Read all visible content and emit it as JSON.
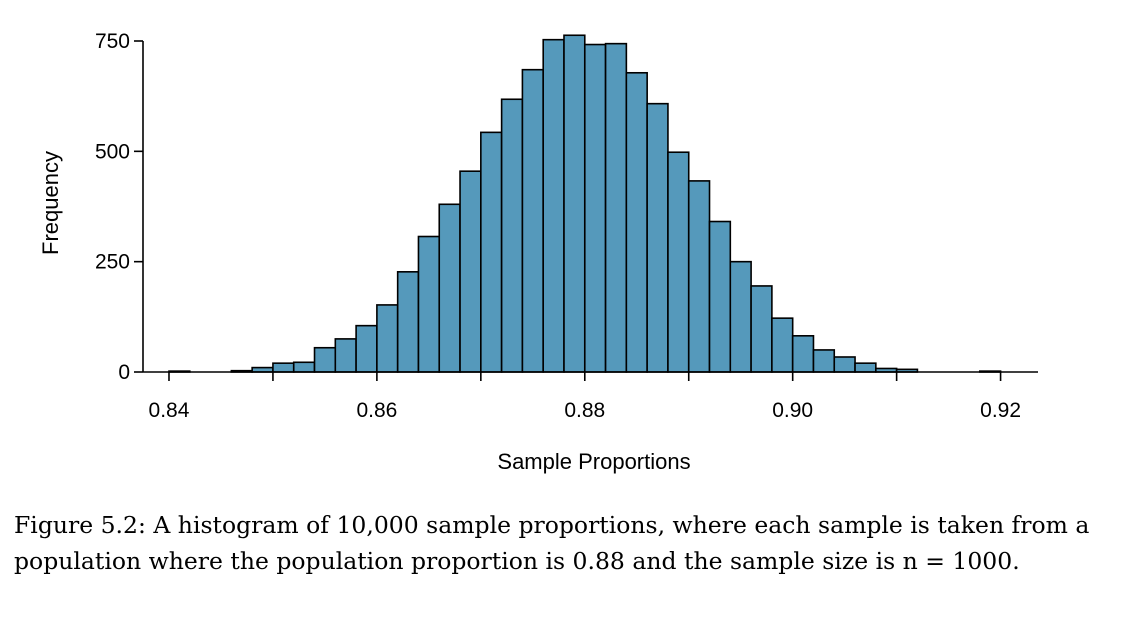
{
  "chart_data": {
    "type": "bar",
    "title": "",
    "xlabel": "Sample Proportions",
    "ylabel": "Frequency",
    "xlim": [
      0.8375,
      0.9236
    ],
    "ylim": [
      0,
      750
    ],
    "bin_width": 0.002,
    "x_ticks": [
      0.84,
      0.85,
      0.86,
      0.87,
      0.88,
      0.89,
      0.9,
      0.91,
      0.92
    ],
    "x_tick_labels": [
      "0.84",
      "",
      "0.86",
      "",
      "0.88",
      "",
      "0.90",
      "",
      "0.92"
    ],
    "y_ticks": [
      0,
      250,
      500,
      750
    ],
    "y_tick_labels": [
      "0",
      "250",
      "500",
      "750"
    ],
    "bar_color": "#5599bb",
    "bins": [
      {
        "start": 0.84,
        "count": 2
      },
      {
        "start": 0.846,
        "count": 3
      },
      {
        "start": 0.848,
        "count": 10
      },
      {
        "start": 0.85,
        "count": 20
      },
      {
        "start": 0.852,
        "count": 22
      },
      {
        "start": 0.854,
        "count": 55
      },
      {
        "start": 0.856,
        "count": 75
      },
      {
        "start": 0.858,
        "count": 105
      },
      {
        "start": 0.86,
        "count": 152
      },
      {
        "start": 0.862,
        "count": 227
      },
      {
        "start": 0.864,
        "count": 307
      },
      {
        "start": 0.866,
        "count": 380
      },
      {
        "start": 0.868,
        "count": 455
      },
      {
        "start": 0.87,
        "count": 543
      },
      {
        "start": 0.872,
        "count": 618
      },
      {
        "start": 0.874,
        "count": 685
      },
      {
        "start": 0.876,
        "count": 753
      },
      {
        "start": 0.878,
        "count": 763
      },
      {
        "start": 0.88,
        "count": 742
      },
      {
        "start": 0.882,
        "count": 744
      },
      {
        "start": 0.884,
        "count": 678
      },
      {
        "start": 0.886,
        "count": 608
      },
      {
        "start": 0.888,
        "count": 498
      },
      {
        "start": 0.89,
        "count": 433
      },
      {
        "start": 0.892,
        "count": 341
      },
      {
        "start": 0.894,
        "count": 250
      },
      {
        "start": 0.896,
        "count": 195
      },
      {
        "start": 0.898,
        "count": 122
      },
      {
        "start": 0.9,
        "count": 82
      },
      {
        "start": 0.902,
        "count": 50
      },
      {
        "start": 0.904,
        "count": 34
      },
      {
        "start": 0.906,
        "count": 20
      },
      {
        "start": 0.908,
        "count": 8
      },
      {
        "start": 0.91,
        "count": 6
      },
      {
        "start": 0.918,
        "count": 2
      }
    ]
  },
  "caption": {
    "text": "Figure 5.2: A histogram of 10,000 sample proportions, where each sample is taken from a population where the population proportion is 0.88 and the sample size is n = 1000."
  }
}
